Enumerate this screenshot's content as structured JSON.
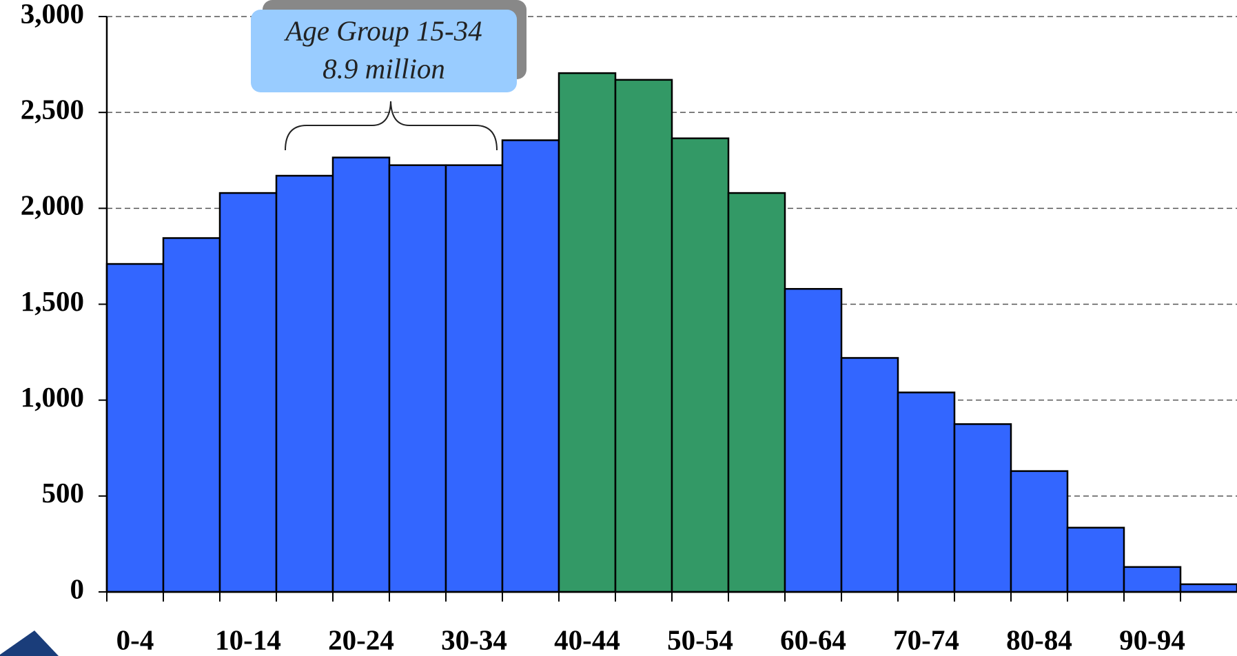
{
  "chart_data": {
    "type": "bar",
    "categories": [
      "0-4",
      null,
      "10-14",
      null,
      "20-24",
      null,
      "30-34",
      null,
      "40-44",
      null,
      "50-54",
      null,
      "60-64",
      null,
      "70-74",
      null,
      "80-84",
      null,
      "90-94",
      null
    ],
    "values": [
      1710,
      1845,
      2080,
      2170,
      2265,
      2225,
      2225,
      2355,
      2705,
      2670,
      2365,
      2080,
      1580,
      1220,
      1040,
      875,
      630,
      335,
      130,
      40
    ],
    "colors": [
      "#3366ff",
      "#3366ff",
      "#3366ff",
      "#3366ff",
      "#3366ff",
      "#3366ff",
      "#3366ff",
      "#3366ff",
      "#339966",
      "#339966",
      "#339966",
      "#339966",
      "#3366ff",
      "#3366ff",
      "#3366ff",
      "#3366ff",
      "#3366ff",
      "#3366ff",
      "#3366ff",
      "#3366ff"
    ],
    "ylim": [
      0,
      3000
    ],
    "yticks": [
      {
        "value": 0,
        "label": "0"
      },
      {
        "value": 500,
        "label": "500"
      },
      {
        "value": 1000,
        "label": "1,000"
      },
      {
        "value": 1500,
        "label": "1,500"
      },
      {
        "value": 2000,
        "label": "2,000"
      },
      {
        "value": 2500,
        "label": "2,500"
      },
      {
        "value": 3000,
        "label": "3,000"
      }
    ],
    "grid": true,
    "annotation": [
      "Age Group 15-34",
      "8.9 million"
    ]
  }
}
